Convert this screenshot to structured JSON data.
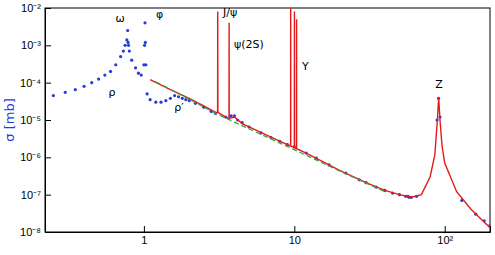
{
  "chart_data": {
    "type": "line",
    "y_label": "σ [mb]",
    "annotations": [
      "ρ",
      "ω",
      "φ",
      "ρ′",
      "J/ψ",
      "ψ(2S)",
      "Υ",
      "Z"
    ],
    "log": true,
    "grid": false,
    "xlim": [
      0.22,
      200
    ],
    "ylim": [
      1e-08,
      0.01
    ],
    "xticks": [
      1,
      10,
      {
        "value": 100,
        "label": "10²"
      }
    ],
    "yticks": [
      {
        "value": 1e-08,
        "label": "10⁻⁸"
      },
      {
        "value": 1e-07,
        "label": "10⁻⁷"
      },
      {
        "value": 1e-06,
        "label": "10⁻⁶"
      },
      {
        "value": 1e-05,
        "label": "10⁻⁵"
      },
      {
        "value": 0.0001,
        "label": "10⁻⁴"
      },
      {
        "value": 0.001,
        "label": "10⁻³"
      },
      {
        "value": 0.01,
        "label": "10⁻²"
      }
    ],
    "series": [
      {
        "type": "scatter",
        "color": "#2a3bd9",
        "marker": "circle",
        "x": [
          0.25,
          0.3,
          0.35,
          0.4,
          0.45,
          0.5,
          0.55,
          0.6,
          0.65,
          0.7,
          0.73,
          0.75,
          0.77,
          0.78,
          0.785,
          0.79,
          0.8,
          0.83,
          0.88,
          0.92,
          0.96,
          1.0,
          1.01,
          1.017,
          1.022,
          1.03,
          1.05,
          1.1,
          1.2,
          1.3,
          1.4,
          1.5,
          1.6,
          1.7,
          1.8,
          1.9,
          2.0,
          2.2,
          2.5,
          2.8,
          3.0,
          3.5,
          3.8,
          4.0,
          4.2,
          4.5,
          5,
          6,
          7,
          8,
          9,
          10,
          12,
          14,
          17,
          22,
          27,
          30,
          35,
          40,
          45,
          50,
          55,
          57,
          58,
          60,
          65,
          89,
          91,
          93,
          130,
          161,
          183,
          200
        ],
        "values": [
          4.5e-05,
          5.5e-05,
          6.5e-05,
          8e-05,
          0.0001,
          0.000125,
          0.00016,
          0.0002,
          0.0003,
          0.0005,
          0.0007,
          0.001,
          0.0014,
          0.0025,
          0.0012,
          0.001,
          0.0007,
          0.0004,
          0.00025,
          0.00018,
          0.00016,
          0.0003,
          0.001,
          0.004,
          0.0012,
          0.0003,
          5e-05,
          3.5e-05,
          3e-05,
          3e-05,
          3.3e-05,
          3.8e-05,
          4.5e-05,
          4.2e-05,
          3.8e-05,
          3.5e-05,
          3.3e-05,
          2.8e-05,
          2.2e-05,
          1.7e-05,
          1.5e-05,
          1.2e-05,
          1.3e-05,
          1.3e-05,
          1e-05,
          8.5e-06,
          6.5e-06,
          4.5e-06,
          3.4e-06,
          2.7e-06,
          2.2e-06,
          1.9e-06,
          1.3e-06,
          9.5e-07,
          6.3e-07,
          3.8e-07,
          2.5e-07,
          2.1e-07,
          1.6e-07,
          1.3e-07,
          1.1e-07,
          1e-07,
          9e-08,
          9e-08,
          8.5e-08,
          8.5e-08,
          9e-08,
          1e-05,
          3.8e-05,
          1.2e-05,
          7e-08,
          3e-08,
          2e-08,
          1.5e-08
        ]
      },
      {
        "type": "line",
        "color": "#e41a1c",
        "line_style": "solid",
        "x": [
          1.1,
          1.5,
          2,
          2.5,
          3.0,
          3.09,
          3.097,
          3.104,
          3.5,
          3.68,
          3.686,
          3.692,
          4.0,
          4.5,
          5,
          7,
          9.45,
          9.46,
          9.47,
          10.0,
          10.02,
          10.04,
          10.35,
          10.355,
          10.36,
          12,
          20,
          30,
          40,
          50,
          60,
          70,
          80,
          86,
          89,
          91.2,
          93,
          96,
          100,
          120,
          150,
          200
        ],
        "values": [
          0.00012,
          6.5e-05,
          3.8e-05,
          2.4e-05,
          1.6e-05,
          1.6e-05,
          0.008,
          1.6e-05,
          1.2e-05,
          1.1e-05,
          0.004,
          1.1e-05,
          1.2e-05,
          8e-06,
          6.5e-06,
          3.5e-06,
          2e-06,
          0.01,
          2e-06,
          1.9e-06,
          0.008,
          1.8e-06,
          1.7e-06,
          0.005,
          1.7e-06,
          1.3e-06,
          4.5e-07,
          2.1e-07,
          1.3e-07,
          1e-07,
          8.5e-08,
          1e-07,
          3e-07,
          1.2e-06,
          8e-06,
          4e-05,
          1e-05,
          2e-06,
          7e-07,
          1.2e-07,
          4e-08,
          1.3e-08
        ]
      },
      {
        "type": "line",
        "color": "#3aa63a",
        "line_style": "dashed",
        "x": [
          1.2,
          2,
          3,
          5,
          10,
          20,
          40
        ],
        "values": [
          0.000105,
          3.6e-05,
          1.5e-05,
          5.8e-06,
          1.6e-06,
          4.3e-07,
          1.2e-07
        ]
      }
    ]
  }
}
